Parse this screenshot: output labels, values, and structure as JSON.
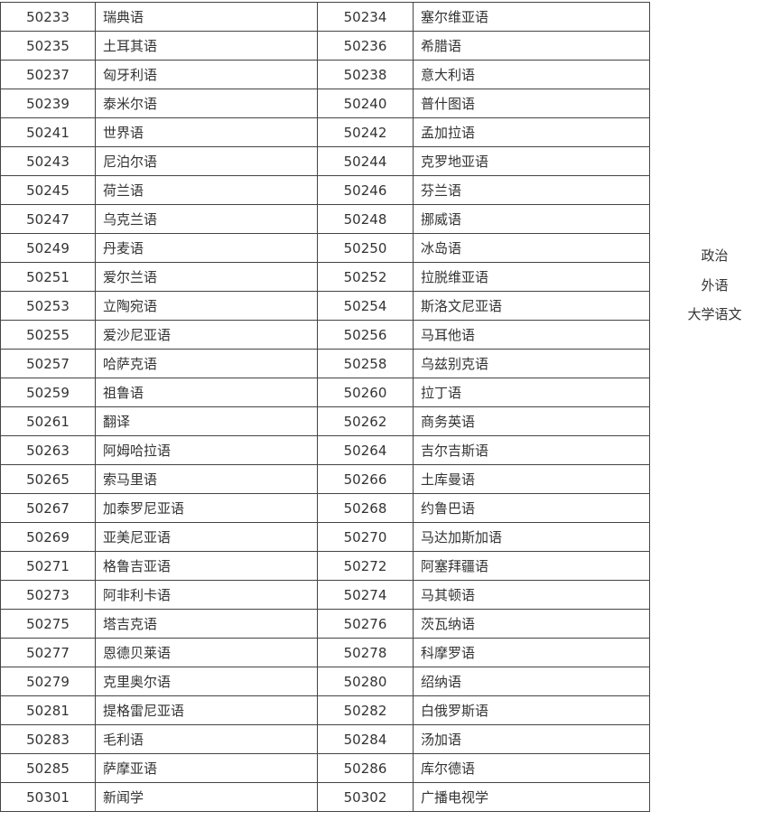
{
  "table": {
    "rows": [
      [
        "50233",
        "瑞典语",
        "50234",
        "塞尔维亚语"
      ],
      [
        "50235",
        "土耳其语",
        "50236",
        "希腊语"
      ],
      [
        "50237",
        "匈牙利语",
        "50238",
        "意大利语"
      ],
      [
        "50239",
        "泰米尔语",
        "50240",
        "普什图语"
      ],
      [
        "50241",
        "世界语",
        "50242",
        "孟加拉语"
      ],
      [
        "50243",
        "尼泊尔语",
        "50244",
        "克罗地亚语"
      ],
      [
        "50245",
        "荷兰语",
        "50246",
        "芬兰语"
      ],
      [
        "50247",
        "乌克兰语",
        "50248",
        "挪威语"
      ],
      [
        "50249",
        "丹麦语",
        "50250",
        "冰岛语"
      ],
      [
        "50251",
        "爱尔兰语",
        "50252",
        "拉脱维亚语"
      ],
      [
        "50253",
        "立陶宛语",
        "50254",
        "斯洛文尼亚语"
      ],
      [
        "50255",
        "爱沙尼亚语",
        "50256",
        "马耳他语"
      ],
      [
        "50257",
        "哈萨克语",
        "50258",
        "乌兹别克语"
      ],
      [
        "50259",
        "祖鲁语",
        "50260",
        "拉丁语"
      ],
      [
        "50261",
        "翻译",
        "50262",
        "商务英语"
      ],
      [
        "50263",
        "阿姆哈拉语",
        "50264",
        "吉尔吉斯语"
      ],
      [
        "50265",
        "索马里语",
        "50266",
        "土库曼语"
      ],
      [
        "50267",
        "加泰罗尼亚语",
        "50268",
        "约鲁巴语"
      ],
      [
        "50269",
        "亚美尼亚语",
        "50270",
        "马达加斯加语"
      ],
      [
        "50271",
        "格鲁吉亚语",
        "50272",
        "阿塞拜疆语"
      ],
      [
        "50273",
        "阿非利卡语",
        "50274",
        "马其顿语"
      ],
      [
        "50275",
        "塔吉克语",
        "50276",
        "茨瓦纳语"
      ],
      [
        "50277",
        "恩德贝莱语",
        "50278",
        "科摩罗语"
      ],
      [
        "50279",
        "克里奥尔语",
        "50280",
        "绍纳语"
      ],
      [
        "50281",
        "提格雷尼亚语",
        "50282",
        "白俄罗斯语"
      ],
      [
        "50283",
        "毛利语",
        "50284",
        "汤加语"
      ],
      [
        "50285",
        "萨摩亚语",
        "50286",
        "库尔德语"
      ],
      [
        "50301",
        "新闻学",
        "50302",
        "广播电视学"
      ]
    ],
    "subjects": [
      "政治",
      "外语",
      "大学语文"
    ]
  }
}
